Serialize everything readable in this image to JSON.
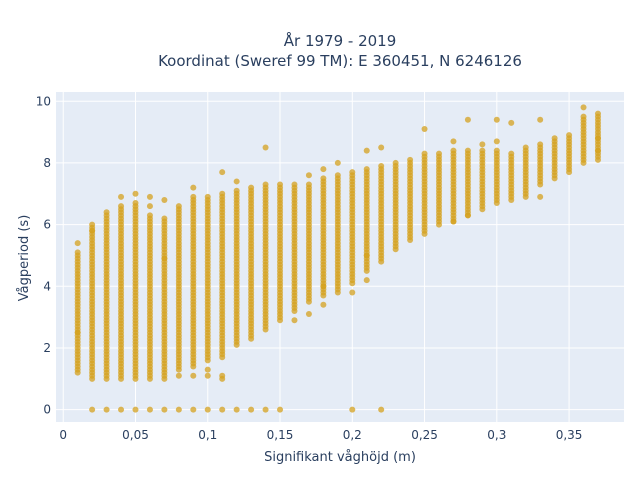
{
  "chart_data": {
    "type": "scatter",
    "title_line1": "År 1979 - 2019",
    "title_line2": "Koordinat (Sweref 99 TM): E 360451, N 6246126",
    "xlabel": "Signifikant våghöjd (m)",
    "ylabel": "Vågperiod (s)",
    "xlim": [
      -0.005,
      0.388
    ],
    "ylim": [
      -0.4,
      10.3
    ],
    "x_ticks": [
      0,
      0.05,
      0.1,
      0.15,
      0.2,
      0.25,
      0.3,
      0.35
    ],
    "x_tick_labels": [
      "0",
      "0,05",
      "0,1",
      "0,15",
      "0,2",
      "0,25",
      "0,3",
      "0,35"
    ],
    "y_ticks": [
      0,
      2,
      4,
      6,
      8,
      10
    ],
    "y_tick_labels": [
      "0",
      "2",
      "4",
      "6",
      "8",
      "10"
    ],
    "grid": true,
    "marker_color": "#d4a21f",
    "plot_bg": "#e5ecf6",
    "columns": [
      {
        "x": 0.01,
        "ymin": 1.2,
        "ymax": 5.1
      },
      {
        "x": 0.02,
        "ymin": 1.0,
        "ymax": 6.0
      },
      {
        "x": 0.03,
        "ymin": 1.0,
        "ymax": 6.4
      },
      {
        "x": 0.04,
        "ymin": 1.0,
        "ymax": 6.6
      },
      {
        "x": 0.05,
        "ymin": 1.0,
        "ymax": 6.7
      },
      {
        "x": 0.06,
        "ymin": 1.0,
        "ymax": 6.3
      },
      {
        "x": 0.07,
        "ymin": 1.0,
        "ymax": 6.2
      },
      {
        "x": 0.08,
        "ymin": 1.3,
        "ymax": 6.5
      },
      {
        "x": 0.09,
        "ymin": 1.5,
        "ymax": 6.9
      },
      {
        "x": 0.1,
        "ymin": 1.6,
        "ymax": 6.9
      },
      {
        "x": 0.11,
        "ymin": 1.7,
        "ymax": 7.0
      },
      {
        "x": 0.12,
        "ymin": 2.1,
        "ymax": 7.1
      },
      {
        "x": 0.13,
        "ymin": 2.3,
        "ymax": 7.2
      },
      {
        "x": 0.14,
        "ymin": 2.6,
        "ymax": 7.3
      },
      {
        "x": 0.15,
        "ymin": 2.9,
        "ymax": 7.3
      },
      {
        "x": 0.16,
        "ymin": 3.2,
        "ymax": 7.3
      },
      {
        "x": 0.17,
        "ymin": 3.5,
        "ymax": 7.3
      },
      {
        "x": 0.18,
        "ymin": 3.7,
        "ymax": 7.5
      },
      {
        "x": 0.19,
        "ymin": 3.9,
        "ymax": 7.6
      },
      {
        "x": 0.2,
        "ymin": 4.1,
        "ymax": 7.7
      },
      {
        "x": 0.21,
        "ymin": 4.5,
        "ymax": 7.8
      },
      {
        "x": 0.22,
        "ymin": 4.8,
        "ymax": 7.9
      },
      {
        "x": 0.23,
        "ymin": 5.2,
        "ymax": 8.0
      },
      {
        "x": 0.24,
        "ymin": 5.5,
        "ymax": 8.1
      },
      {
        "x": 0.25,
        "ymin": 5.7,
        "ymax": 8.3
      },
      {
        "x": 0.26,
        "ymin": 6.0,
        "ymax": 8.3
      },
      {
        "x": 0.27,
        "ymin": 6.1,
        "ymax": 8.4
      },
      {
        "x": 0.28,
        "ymin": 6.3,
        "ymax": 8.4
      },
      {
        "x": 0.29,
        "ymin": 6.5,
        "ymax": 8.4
      },
      {
        "x": 0.3,
        "ymin": 6.7,
        "ymax": 8.4
      },
      {
        "x": 0.31,
        "ymin": 6.8,
        "ymax": 8.3
      },
      {
        "x": 0.32,
        "ymin": 7.0,
        "ymax": 8.4
      },
      {
        "x": 0.33,
        "ymin": 7.3,
        "ymax": 8.6
      },
      {
        "x": 0.34,
        "ymin": 7.5,
        "ymax": 8.7
      },
      {
        "x": 0.35,
        "ymin": 7.7,
        "ymax": 8.9
      },
      {
        "x": 0.36,
        "ymin": 8.0,
        "ymax": 9.5
      },
      {
        "x": 0.37,
        "ymin": 8.1,
        "ymax": 9.5
      }
    ],
    "outliers": [
      {
        "x": 0.01,
        "y": 5.4
      },
      {
        "x": 0.02,
        "y": 5.8
      },
      {
        "x": 0.04,
        "y": 6.9
      },
      {
        "x": 0.05,
        "y": 7.0
      },
      {
        "x": 0.06,
        "y": 6.9
      },
      {
        "x": 0.06,
        "y": 6.6
      },
      {
        "x": 0.07,
        "y": 6.8
      },
      {
        "x": 0.08,
        "y": 6.6
      },
      {
        "x": 0.09,
        "y": 7.2
      },
      {
        "x": 0.11,
        "y": 7.7
      },
      {
        "x": 0.12,
        "y": 7.4
      },
      {
        "x": 0.14,
        "y": 8.5
      },
      {
        "x": 0.17,
        "y": 7.6
      },
      {
        "x": 0.18,
        "y": 7.8
      },
      {
        "x": 0.19,
        "y": 8.0
      },
      {
        "x": 0.21,
        "y": 8.4
      },
      {
        "x": 0.22,
        "y": 8.5
      },
      {
        "x": 0.25,
        "y": 9.1
      },
      {
        "x": 0.27,
        "y": 8.7
      },
      {
        "x": 0.28,
        "y": 9.4
      },
      {
        "x": 0.29,
        "y": 8.6
      },
      {
        "x": 0.3,
        "y": 9.4
      },
      {
        "x": 0.31,
        "y": 9.3
      },
      {
        "x": 0.33,
        "y": 9.4
      },
      {
        "x": 0.34,
        "y": 8.8
      },
      {
        "x": 0.36,
        "y": 9.8
      },
      {
        "x": 0.37,
        "y": 9.6
      },
      {
        "x": 0.37,
        "y": 8.8
      },
      {
        "x": 0.37,
        "y": 8.4
      },
      {
        "x": 0.3,
        "y": 8.7
      },
      {
        "x": 0.32,
        "y": 8.5
      },
      {
        "x": 0.16,
        "y": 2.9
      },
      {
        "x": 0.17,
        "y": 3.1
      },
      {
        "x": 0.18,
        "y": 3.4
      },
      {
        "x": 0.19,
        "y": 3.8
      },
      {
        "x": 0.2,
        "y": 3.8
      },
      {
        "x": 0.21,
        "y": 4.2
      },
      {
        "x": 0.21,
        "y": 5.0
      },
      {
        "x": 0.27,
        "y": 6.1
      },
      {
        "x": 0.28,
        "y": 6.3
      },
      {
        "x": 0.32,
        "y": 6.9
      },
      {
        "x": 0.33,
        "y": 6.9
      },
      {
        "x": 0.08,
        "y": 1.1
      },
      {
        "x": 0.09,
        "y": 1.1
      },
      {
        "x": 0.1,
        "y": 1.1
      },
      {
        "x": 0.11,
        "y": 1.1
      },
      {
        "x": 0.1,
        "y": 1.3
      },
      {
        "x": 0.11,
        "y": 1.0
      },
      {
        "x": 0.09,
        "y": 1.4
      },
      {
        "x": 0.01,
        "y": 2.5
      },
      {
        "x": 0.07,
        "y": 4.9
      },
      {
        "x": 0.18,
        "y": 4.0
      }
    ],
    "zero_points_x": [
      0.02,
      0.03,
      0.04,
      0.05,
      0.06,
      0.07,
      0.08,
      0.09,
      0.1,
      0.11,
      0.12,
      0.13,
      0.14,
      0.15,
      0.2,
      0.22
    ]
  }
}
